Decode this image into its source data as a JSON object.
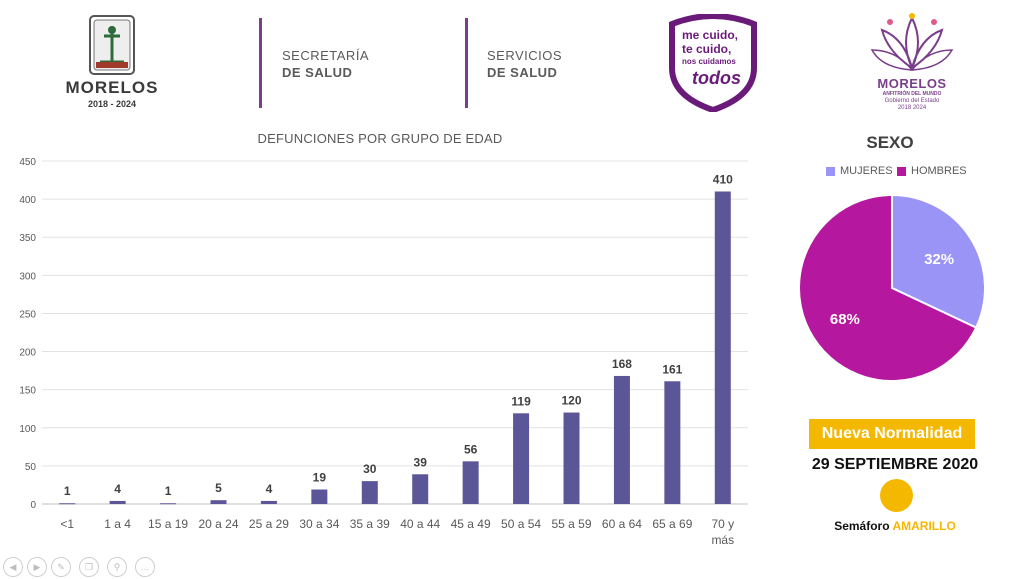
{
  "header": {
    "logo_morelos_name": "MORELOS",
    "logo_morelos_years": "2018 - 2024",
    "dept1_line1": "SECRETARÍA",
    "dept1_line2": "DE SALUD",
    "dept2_line1": "SERVICIOS",
    "dept2_line2": "DE SALUD",
    "campaign_line1": "me cuido,",
    "campaign_line2": "te cuido,",
    "campaign_line3": "nos cuidamos",
    "campaign_line4": "todos",
    "gov_logo_name": "MORELOS",
    "gov_logo_tagline": "ANFITRIÓN DEL MUNDO",
    "gov_logo_line2": "Gobierno del Estado",
    "gov_logo_line3": "2018 2024"
  },
  "colors": {
    "bar": "#5b5698",
    "mujeres": "#9b94f7",
    "hombres": "#b5179e",
    "brand_purple": "#7a3e8a",
    "badge_yellow": "#f5b800"
  },
  "chart_data": [
    {
      "type": "bar",
      "title": "DEFUNCIONES POR GRUPO DE EDAD",
      "categories": [
        "<1",
        "1 a 4",
        "15 a 19",
        "20 a 24",
        "25 a 29",
        "30 a 34",
        "35 a 39",
        "40 a 44",
        "45 a 49",
        "50 a 54",
        "55 a 59",
        "60 a 64",
        "65 a 69",
        "70 y más"
      ],
      "values": [
        1,
        4,
        1,
        5,
        4,
        19,
        30,
        39,
        56,
        119,
        120,
        168,
        161,
        410
      ],
      "ylim": [
        0,
        450
      ],
      "yticks": [
        0,
        50,
        100,
        150,
        200,
        250,
        300,
        350,
        400,
        450
      ],
      "grid": true,
      "data_labels": true
    },
    {
      "type": "pie",
      "title": "SEXO",
      "labels": [
        "MUJERES",
        "HOMBRES"
      ],
      "values": [
        32,
        68
      ],
      "value_labels": [
        "32%",
        "68%"
      ],
      "legend": "top"
    }
  ],
  "status": {
    "phase_label": "Nueva Normalidad",
    "date": "29 SEPTIEMBRE 2020",
    "semaforo_label": "Semáforo",
    "semaforo_color": "AMARILLO"
  },
  "controls": [
    "prev-icon",
    "next-icon",
    "pen-icon",
    "copy-icon",
    "zoom-icon",
    "more-icon"
  ]
}
